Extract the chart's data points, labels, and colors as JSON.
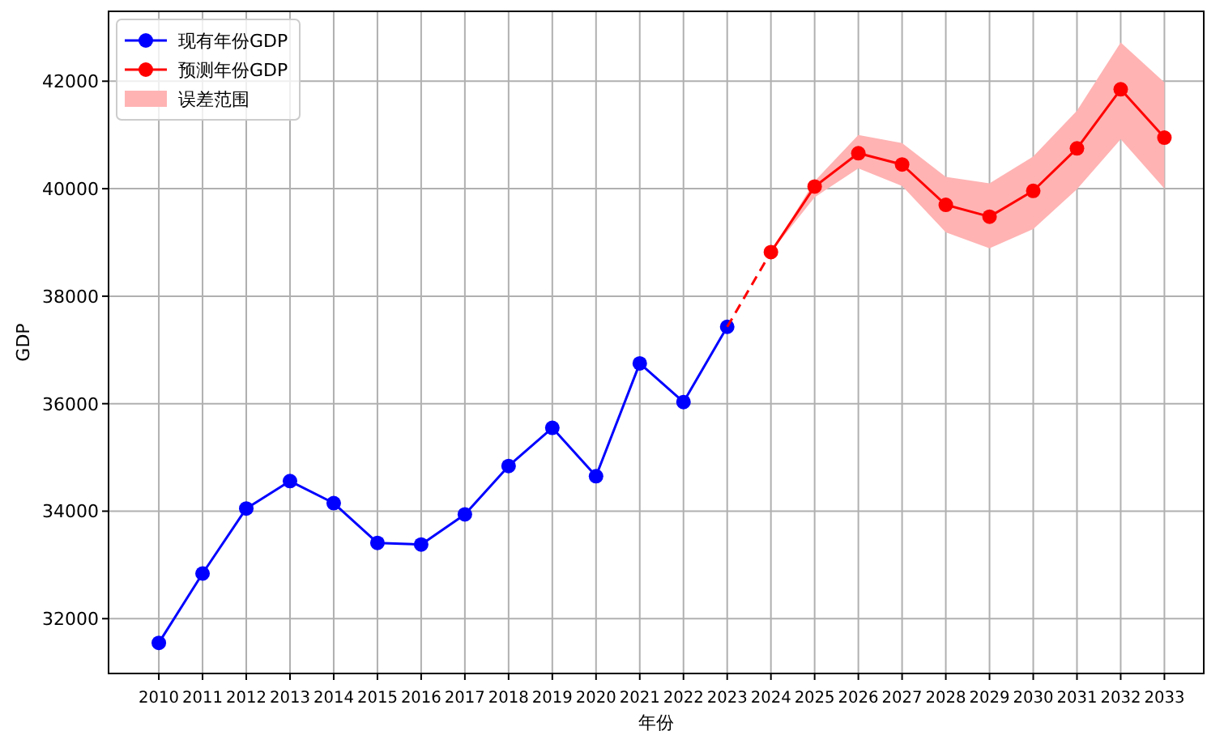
{
  "chart_data": {
    "type": "line",
    "xlabel": "年份",
    "ylabel": "GDP",
    "xlim": [
      2008.85,
      2033.9
    ],
    "ylim": [
      30980,
      43300
    ],
    "xticks": [
      2010,
      2011,
      2012,
      2013,
      2014,
      2015,
      2016,
      2017,
      2018,
      2019,
      2020,
      2021,
      2022,
      2023,
      2024,
      2025,
      2026,
      2027,
      2028,
      2029,
      2030,
      2031,
      2032,
      2033
    ],
    "yticks": [
      32000,
      34000,
      36000,
      38000,
      40000,
      42000
    ],
    "grid": true,
    "legend": "top left",
    "series": [
      {
        "type": "line",
        "name": "现有年份GDP",
        "color": "#0000ff",
        "marker": "circle",
        "x": [
          2010,
          2011,
          2012,
          2013,
          2014,
          2015,
          2016,
          2017,
          2018,
          2019,
          2020,
          2021,
          2022,
          2023
        ],
        "values": [
          31550,
          32840,
          34050,
          34560,
          34150,
          33410,
          33380,
          33940,
          34840,
          35550,
          34650,
          36750,
          36030,
          37430
        ]
      },
      {
        "type": "line",
        "color": "#ff0000",
        "line_style": "dashed",
        "x": [
          2023,
          2024
        ],
        "values": [
          37430,
          38820
        ]
      },
      {
        "type": "line",
        "name": "预测年份GDP",
        "color": "#ff0000",
        "marker": "circle",
        "x": [
          2024,
          2025,
          2026,
          2027,
          2028,
          2029,
          2030,
          2031,
          2032,
          2033
        ],
        "values": [
          38820,
          40040,
          40660,
          40450,
          39700,
          39480,
          39960,
          40750,
          41850,
          40950
        ],
        "lower": [
          38820,
          39840,
          40380,
          40050,
          39190,
          38890,
          39250,
          39990,
          40920,
          40000
        ],
        "upper": [
          38820,
          40140,
          41000,
          40850,
          40220,
          40100,
          40600,
          41450,
          42720,
          41980
        ]
      },
      {
        "type": "area",
        "name": "误差范围",
        "color": "#ffb3b3"
      }
    ]
  }
}
